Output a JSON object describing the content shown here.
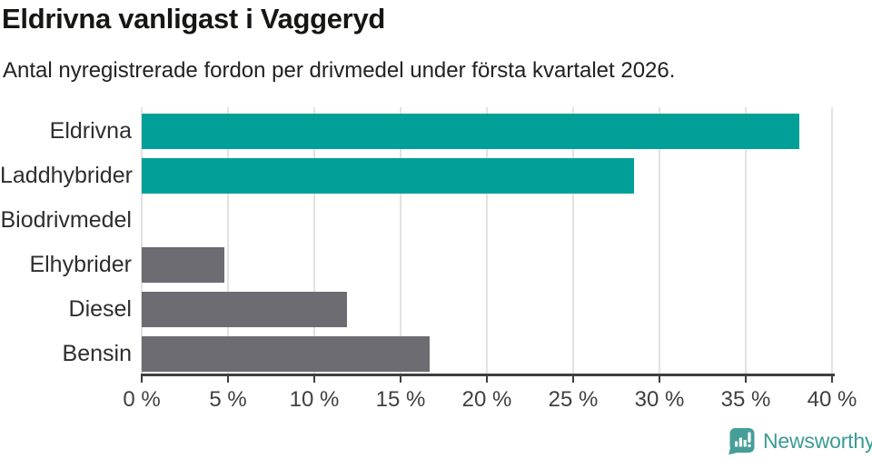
{
  "title": "Eldrivna vanligast i Vaggeryd",
  "subtitle": "Antal nyregistrerade fordon per drivmedel under första kvartalet 2026.",
  "chart_data": {
    "type": "bar",
    "orientation": "horizontal",
    "title": "Eldrivna vanligast i Vaggeryd",
    "subtitle": "Antal nyregistrerade fordon per drivmedel under första kvartalet 2026.",
    "categories": [
      "Eldrivna",
      "Laddhybrider",
      "Biodrivmedel",
      "Elhybrider",
      "Diesel",
      "Bensin"
    ],
    "values": [
      38.1,
      28.5,
      0,
      4.8,
      11.9,
      16.7
    ],
    "unit": "%",
    "bar_colors": [
      "#00a099",
      "#00a099",
      "#6c6c72",
      "#6c6c72",
      "#6c6c72",
      "#6c6c72"
    ],
    "xlim": [
      0,
      40
    ],
    "x_ticks": [
      0,
      5,
      10,
      15,
      20,
      25,
      30,
      35,
      40
    ],
    "x_tick_labels": [
      "0 %",
      "5 %",
      "10 %",
      "15 %",
      "20 %",
      "25 %",
      "30 %",
      "35 %",
      "40 %"
    ],
    "grid": "vertical",
    "legend": "none"
  },
  "colors": {
    "highlight_teal": "#00a099",
    "neutral_gray": "#6c6c72",
    "gridline": "#e2e2e2",
    "axis": "#3f3f3f",
    "logo_teal": "#3b9b95",
    "logo_icon_teal": "#459e99"
  },
  "footer": {
    "brand": "Newsworthy",
    "logo_icon": "bar-chart-speech-bubble-icon"
  }
}
